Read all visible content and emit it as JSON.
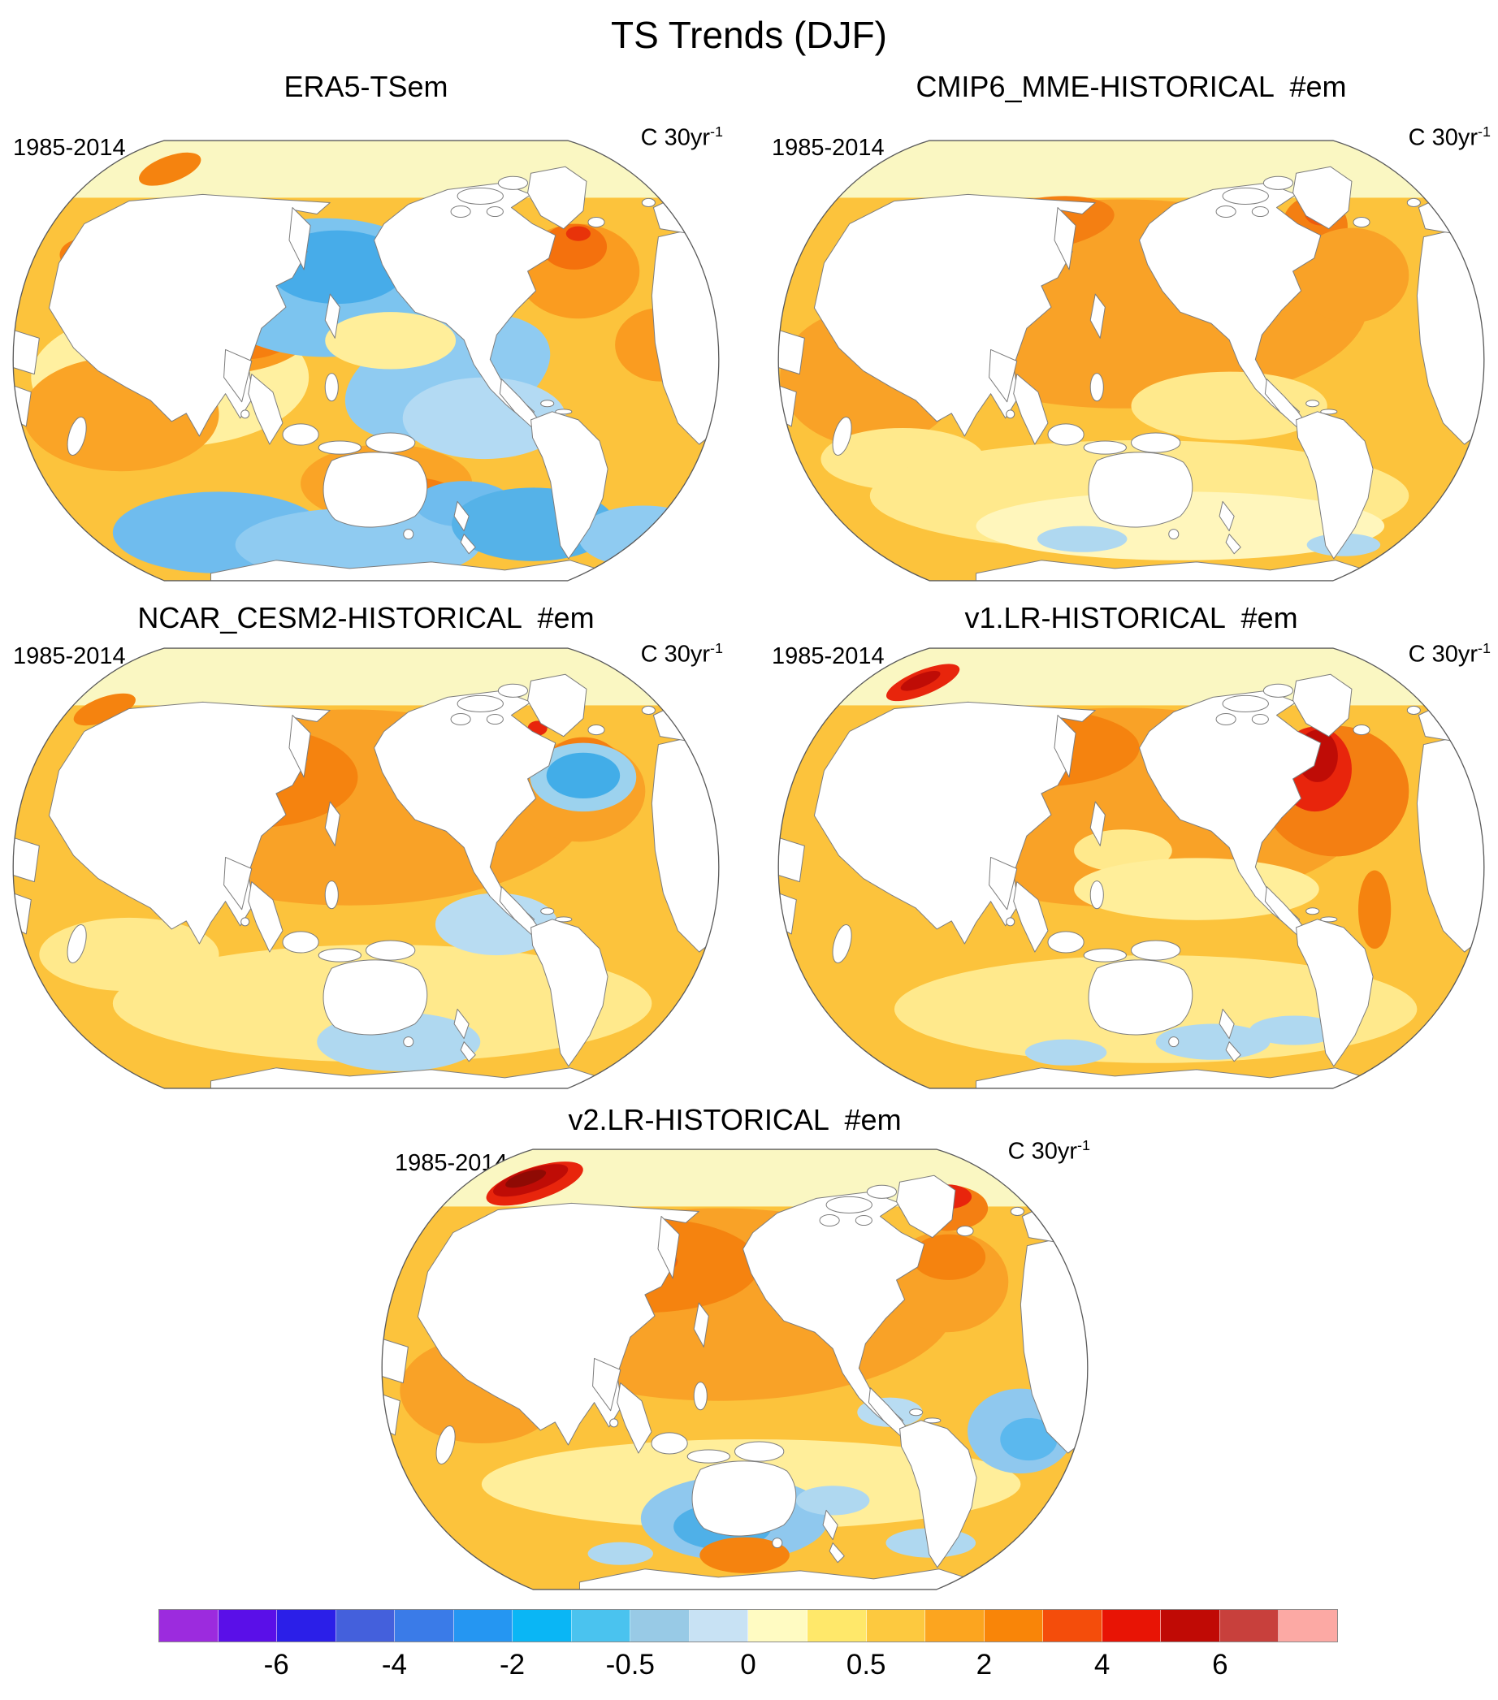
{
  "figure": {
    "title": "TS Trends (DJF)"
  },
  "panels": [
    {
      "title": "ERA5-TSem",
      "period": "1985-2014",
      "units_base": "C 30yr",
      "units_sup": "-1"
    },
    {
      "title": "CMIP6_MME-HISTORICAL  #em",
      "period": "1985-2014",
      "units_base": "C 30yr",
      "units_sup": "-1"
    },
    {
      "title": "NCAR_CESM2-HISTORICAL  #em",
      "period": "1985-2014",
      "units_base": "C 30yr",
      "units_sup": "-1"
    },
    {
      "title": "v1.LR-HISTORICAL  #em",
      "period": "1985-2014",
      "units_base": "C 30yr",
      "units_sup": "-1"
    },
    {
      "title": "v2.LR-HISTORICAL  #em",
      "period": "1985-2014",
      "units_base": "C 30yr",
      "units_sup": "-1"
    }
  ],
  "colorbar": {
    "orientation": "horizontal",
    "colors": [
      "#9C2BDE",
      "#5A0FE8",
      "#2B1FE8",
      "#4460DC",
      "#3A7BE8",
      "#2596F2",
      "#0AB6F5",
      "#4AC3EF",
      "#98CAE6",
      "#C8E2F4",
      "#FFFBC2",
      "#FFE86A",
      "#FDC93F",
      "#FCA51F",
      "#F98508",
      "#F44D0B",
      "#E81405",
      "#C00A05",
      "#C8403C",
      "#FCA9A4"
    ],
    "ticks": [
      {
        "label": "-6",
        "boundary": 2
      },
      {
        "label": "-4",
        "boundary": 4
      },
      {
        "label": "-2",
        "boundary": 6
      },
      {
        "label": "-0.5",
        "boundary": 8
      },
      {
        "label": "0",
        "boundary": 10
      },
      {
        "label": "0.5",
        "boundary": 12
      },
      {
        "label": "2",
        "boundary": 14
      },
      {
        "label": "4",
        "boundary": 16
      },
      {
        "label": "6",
        "boundary": 18
      }
    ]
  },
  "chart_data": {
    "type": "heatmap",
    "subtype": "global-trend-map-panels",
    "title": "TS Trends (DJF)",
    "panel_titles": [
      "ERA5-TSem",
      "CMIP6_MME-HISTORICAL  #em",
      "NCAR_CESM2-HISTORICAL  #em",
      "v1.LR-HISTORICAL  #em",
      "v2.LR-HISTORICAL  #em"
    ],
    "period": "1985-2014",
    "units": "C 30yr⁻¹",
    "projection": "global oval (Robinson-like), Pacific-centered",
    "layout": "five map panels: 2x2 grid plus one centered bottom panel, shared horizontal colorbar at figure bottom",
    "colorbar_tick_labels": [
      "-6",
      "-4",
      "-2",
      "-0.5",
      "0",
      "0.5",
      "2",
      "4",
      "6"
    ],
    "colorbar_colors": [
      "#9C2BDE",
      "#5A0FE8",
      "#2B1FE8",
      "#4460DC",
      "#3A7BE8",
      "#2596F2",
      "#0AB6F5",
      "#4AC3EF",
      "#98CAE6",
      "#C8E2F4",
      "#FFFBC2",
      "#FFE86A",
      "#FDC93F",
      "#FCA51F",
      "#F98508",
      "#F44D0B",
      "#E81405",
      "#C00A05",
      "#C8403C",
      "#FCA9A4"
    ]
  }
}
